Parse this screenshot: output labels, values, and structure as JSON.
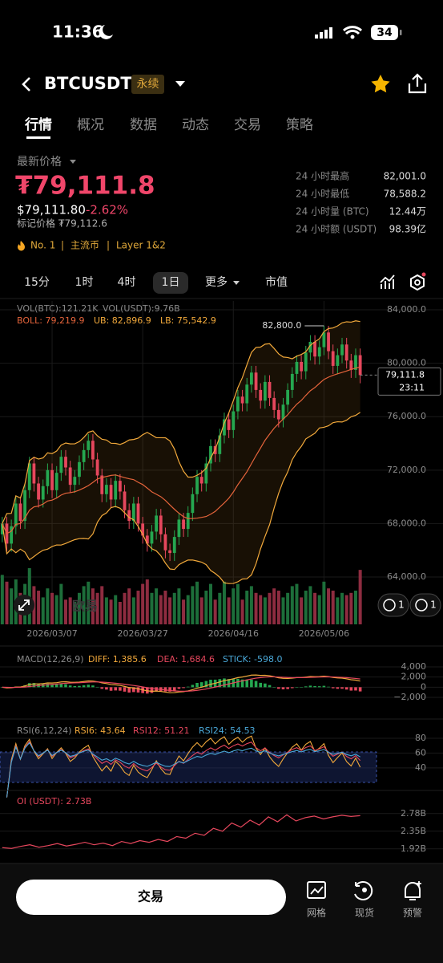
{
  "status_bar": {
    "time": "11:36",
    "battery": "34"
  },
  "header": {
    "symbol": "BTCUSDT",
    "badge": "永续"
  },
  "tabs": [
    "行情",
    "概况",
    "数据",
    "动态",
    "交易",
    "策略"
  ],
  "price": {
    "label": "最新价格",
    "last": "₮79,111.8",
    "usd": "$79,111.80",
    "change": "-2.62%",
    "mark": "标记价格 ₮79,112.6"
  },
  "stats": [
    {
      "label": "24 小时最高",
      "value": "82,001.0"
    },
    {
      "label": "24 小时最低",
      "value": "78,588.2"
    },
    {
      "label": "24 小时量 (BTC)",
      "value": "12.44万"
    },
    {
      "label": "24 小时额 (USDT)",
      "value": "98.39亿"
    }
  ],
  "tags": [
    "No. 1",
    "主流币",
    "Layer 1&2"
  ],
  "timeframes": [
    "15分",
    "1时",
    "4时",
    "1日",
    "更多",
    "市值"
  ],
  "overlay_buttons": [
    "1",
    "1"
  ],
  "watermark": "欧易",
  "bottom_bar": {
    "button": "交易",
    "actions": [
      "网格",
      "现货",
      "预警"
    ]
  },
  "chart_data": [
    {
      "type": "candlestick",
      "volume_labels": [
        "VOL(BTC):121.21K",
        "VOL(USDT):9.76B"
      ],
      "boll_labels": [
        "BOLL: 79,219.9",
        "UB: 82,896.9",
        "LB: 75,542.9"
      ],
      "up_color": "#25a750",
      "down_color": "#e6475d",
      "grid": true,
      "candles": [
        [
          67200,
          68500,
          66600,
          68000
        ],
        [
          68000,
          68500,
          65900,
          66500
        ],
        [
          66500,
          68300,
          65900,
          67800
        ],
        [
          67800,
          70000,
          67200,
          69500
        ],
        [
          69500,
          70000,
          67600,
          68200
        ],
        [
          68200,
          71000,
          67600,
          70500
        ],
        [
          70500,
          73000,
          69900,
          72500
        ],
        [
          72500,
          73000,
          70400,
          71000
        ],
        [
          71000,
          71500,
          69200,
          69800
        ],
        [
          69800,
          71300,
          69200,
          70800
        ],
        [
          70800,
          72500,
          70200,
          72000
        ],
        [
          72000,
          72500,
          69900,
          70500
        ],
        [
          70500,
          72300,
          69900,
          71800
        ],
        [
          71800,
          73500,
          71200,
          73000
        ],
        [
          73000,
          73500,
          71600,
          72200
        ],
        [
          72200,
          72700,
          70300,
          70900
        ],
        [
          70900,
          72000,
          70300,
          71500
        ],
        [
          71500,
          73100,
          70900,
          72600
        ],
        [
          72600,
          74000,
          72000,
          73500
        ],
        [
          73500,
          74700,
          72900,
          74200
        ],
        [
          74200,
          74700,
          72200,
          72800
        ],
        [
          72800,
          73300,
          71000,
          71600
        ],
        [
          71600,
          72100,
          69600,
          70200
        ],
        [
          70200,
          71400,
          69600,
          70900
        ],
        [
          70900,
          71400,
          69200,
          69800
        ],
        [
          69800,
          71700,
          69200,
          71200
        ],
        [
          71200,
          71700,
          69800,
          70400
        ],
        [
          70400,
          70900,
          68400,
          69000
        ],
        [
          69000,
          69500,
          67600,
          68200
        ],
        [
          68200,
          70000,
          67600,
          69500
        ],
        [
          69500,
          70000,
          67400,
          68000
        ],
        [
          68000,
          68500,
          66500,
          67100
        ],
        [
          67100,
          67600,
          65900,
          66500
        ],
        [
          66500,
          67900,
          65900,
          67400
        ],
        [
          67400,
          69100,
          66800,
          68600
        ],
        [
          68600,
          69100,
          66600,
          67200
        ],
        [
          67200,
          67700,
          65400,
          66000
        ],
        [
          66000,
          66500,
          65200,
          65800
        ],
        [
          65800,
          67500,
          65200,
          67000
        ],
        [
          67000,
          68800,
          66400,
          68300
        ],
        [
          68300,
          68800,
          67000,
          67600
        ],
        [
          67600,
          69300,
          67000,
          68800
        ],
        [
          68800,
          70700,
          68200,
          70200
        ],
        [
          70200,
          72000,
          69600,
          71500
        ],
        [
          71500,
          72000,
          70400,
          71000
        ],
        [
          71000,
          73000,
          70400,
          72500
        ],
        [
          72500,
          74300,
          71900,
          73800
        ],
        [
          73800,
          74300,
          72600,
          73200
        ],
        [
          73200,
          75100,
          72600,
          74600
        ],
        [
          74600,
          76300,
          74000,
          75800
        ],
        [
          75800,
          76300,
          74400,
          75000
        ],
        [
          75000,
          76900,
          74400,
          76400
        ],
        [
          76400,
          78000,
          75800,
          77500
        ],
        [
          77500,
          78000,
          76400,
          77000
        ],
        [
          77000,
          78900,
          76400,
          78400
        ],
        [
          78400,
          79800,
          77800,
          79300
        ],
        [
          79300,
          79800,
          77400,
          78000
        ],
        [
          78000,
          78500,
          76600,
          77200
        ],
        [
          77200,
          79100,
          76600,
          78600
        ],
        [
          78600,
          79100,
          76800,
          77400
        ],
        [
          77400,
          77900,
          75900,
          76500
        ],
        [
          76500,
          77000,
          75200,
          75800
        ],
        [
          75800,
          77400,
          75200,
          76900
        ],
        [
          76900,
          78500,
          76300,
          78000
        ],
        [
          78000,
          79700,
          77400,
          79200
        ],
        [
          79200,
          80600,
          78600,
          80100
        ],
        [
          80100,
          80600,
          78800,
          79400
        ],
        [
          79400,
          81300,
          78800,
          80800
        ],
        [
          80800,
          82100,
          80200,
          81600
        ],
        [
          81600,
          82100,
          79900,
          80500
        ],
        [
          80500,
          81700,
          79900,
          81200
        ],
        [
          81200,
          82800,
          80600,
          82300
        ],
        [
          82300,
          82800,
          80300,
          80900
        ],
        [
          80900,
          81400,
          79200,
          79800
        ],
        [
          79800,
          81100,
          79200,
          80600
        ],
        [
          80600,
          81900,
          80000,
          81400
        ],
        [
          81400,
          81900,
          79600,
          80200
        ],
        [
          80200,
          80700,
          78900,
          79500
        ],
        [
          79500,
          81100,
          78900,
          80600
        ],
        [
          80600,
          81100,
          78500,
          79111.8
        ]
      ],
      "volumes": [
        110,
        95,
        80,
        100,
        70,
        90,
        125,
        85,
        75,
        60,
        80,
        70,
        65,
        90,
        55,
        60,
        50,
        70,
        85,
        95,
        80,
        70,
        85,
        60,
        55,
        65,
        50,
        70,
        80,
        60,
        75,
        90,
        100,
        70,
        80,
        65,
        75,
        60,
        70,
        80,
        55,
        65,
        85,
        95,
        60,
        75,
        90,
        55,
        70,
        95,
        60,
        80,
        90,
        55,
        75,
        85,
        70,
        65,
        60,
        70,
        80,
        75,
        60,
        70,
        85,
        90,
        60,
        75,
        85,
        70,
        65,
        95,
        80,
        75,
        60,
        70,
        65,
        70,
        75,
        121.21
      ],
      "ylim": [
        60460,
        84660
      ],
      "yticks": [
        {
          "value": 84000,
          "label": "84,000.0"
        },
        {
          "value": 80000,
          "label": "80,000.0"
        },
        {
          "value": 76000,
          "label": "76,000.0"
        },
        {
          "value": 72000,
          "label": "72,000.0"
        },
        {
          "value": 68000,
          "label": "68,000.0"
        },
        {
          "value": 64000,
          "label": "64,000.0"
        }
      ],
      "xlim": [
        -0.5,
        82.6
      ],
      "xticks": [
        {
          "value": 11,
          "label": "2026/03/07"
        },
        {
          "value": 31,
          "label": "2026/03/27"
        },
        {
          "value": 51,
          "label": "2026/04/16"
        },
        {
          "value": 71,
          "label": "2026/05/06"
        }
      ],
      "high_marker": {
        "value": 82800,
        "label": "82,800.0"
      },
      "price_tag": {
        "value": 79111.8,
        "label": "79,111.8",
        "countdown": "23:11"
      }
    },
    {
      "type": "macd",
      "periods": [
        12,
        26,
        9
      ],
      "labels": [
        "MACD(12,26,9)",
        "DIFF: 1,385.6",
        "DEA: 1,684.6",
        "STICK: -598.0"
      ],
      "ylim": [
        -4990,
        4945
      ],
      "yticks": [
        {
          "value": 4000,
          "label": "4,000"
        },
        {
          "value": 2000,
          "label": "2,000"
        },
        0,
        {
          "value": -2000,
          "label": "−2,000"
        }
      ]
    },
    {
      "type": "rsi",
      "periods": [
        6,
        12,
        24
      ],
      "labels": [
        "RSI(6,12,24)",
        "RSI6: 43.64",
        "RSI12: 51.21",
        "RSI24: 54.53"
      ],
      "ylim": [
        17,
        85.4
      ],
      "yticks": [
        80,
        60,
        40
      ]
    },
    {
      "type": "line",
      "label": "OI (USDT): 2.73B",
      "color": "#e6475d",
      "values": [
        1.95,
        1.93,
        1.98,
        2.02,
        1.96,
        2.0,
        2.05,
        1.99,
        2.03,
        2.08,
        2.02,
        2.06,
        2.0,
        2.1,
        2.05,
        2.12,
        2.08,
        2.15,
        2.1,
        2.22,
        2.18,
        2.3,
        2.25,
        2.42,
        2.35,
        2.55,
        2.45,
        2.62,
        2.5,
        2.7,
        2.58,
        2.75,
        2.6,
        2.68,
        2.72,
        2.65,
        2.7,
        2.74,
        2.71,
        2.73
      ],
      "ylim": [
        1.72,
        3.05
      ],
      "yticks": [
        {
          "value": 2.78,
          "label": "2.78B"
        },
        {
          "value": 2.35,
          "label": "2.35B"
        },
        {
          "value": 1.92,
          "label": "1.92B"
        }
      ]
    }
  ]
}
